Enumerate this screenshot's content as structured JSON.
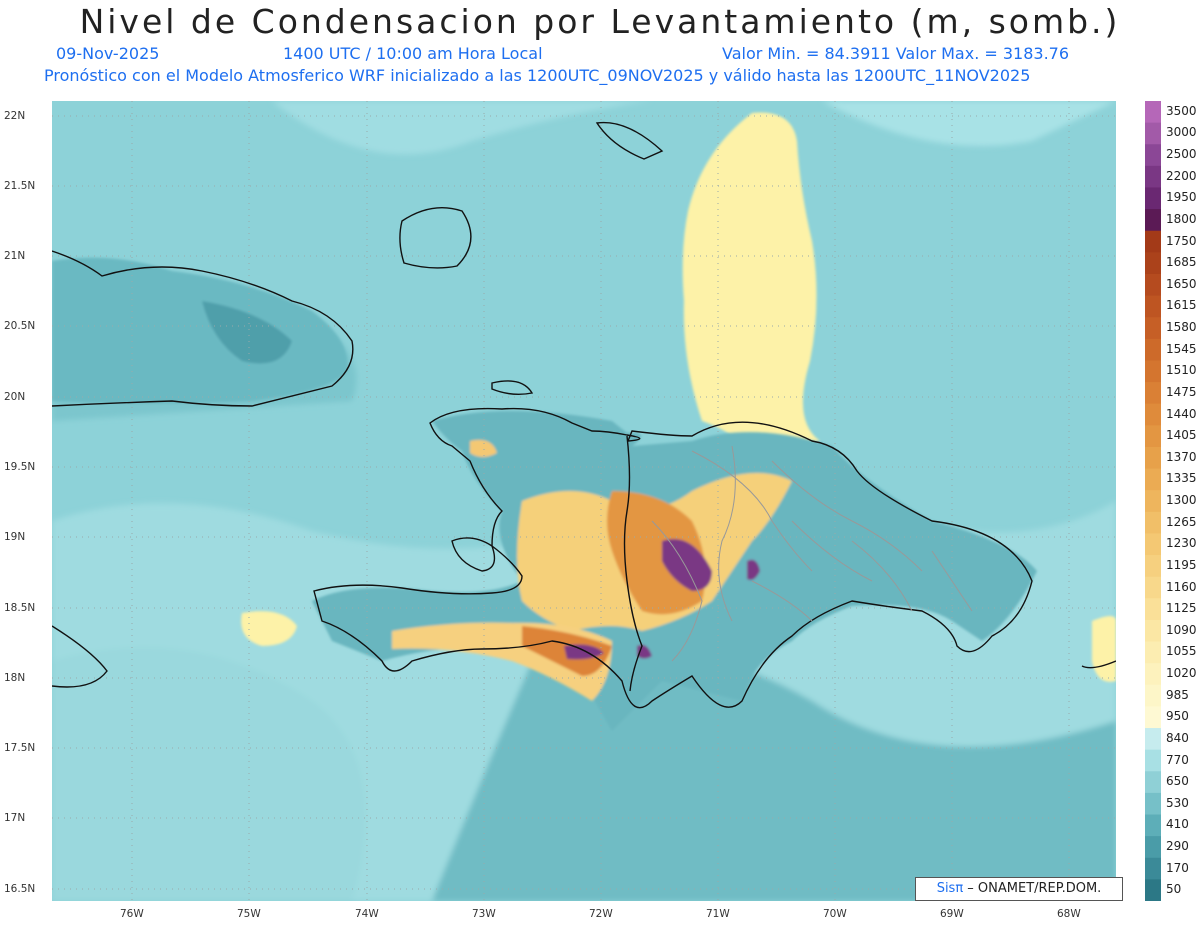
{
  "header": {
    "title": "Nivel de Condensacion por Levantamiento (m, somb.)",
    "date": "09-Nov-2025",
    "time": "1400 UTC / 10:00 am Hora Local",
    "minmax": "Valor Min. = 84.3911  Valor Max. = 3183.76",
    "forecast": "Pronóstico con el Modelo Atmosferico WRF inicializado a las 1200UTC_09NOV2025 y válido hasta las  1200UTC_11NOV2025"
  },
  "axes": {
    "y_labels": [
      "22N",
      "21.5N",
      "21N",
      "20.5N",
      "20N",
      "19.5N",
      "19N",
      "18.5N",
      "18N",
      "17.5N",
      "17N",
      "16.5N"
    ],
    "x_labels": [
      "76W",
      "75W",
      "74W",
      "73W",
      "72W",
      "71W",
      "70W",
      "69W",
      "68W"
    ]
  },
  "colorbar": {
    "labels": [
      "3500",
      "3000",
      "2500",
      "2200",
      "1950",
      "1800",
      "1750",
      "1685",
      "1650",
      "1615",
      "1580",
      "1545",
      "1510",
      "1475",
      "1440",
      "1405",
      "1370",
      "1335",
      "1300",
      "1265",
      "1230",
      "1195",
      "1160",
      "1125",
      "1090",
      "1055",
      "1020",
      "985",
      "950",
      "840",
      "770",
      "650",
      "530",
      "410",
      "290",
      "170",
      "50"
    ],
    "colors": [
      "#b567b8",
      "#a25aa8",
      "#8b4796",
      "#7a3784",
      "#6a2872",
      "#5b1a55",
      "#a33a18",
      "#ab421b",
      "#b54b1f",
      "#be5522",
      "#c65f26",
      "#cd6a2a",
      "#d4752f",
      "#da8035",
      "#df8b3b",
      "#e39642",
      "#e7a14a",
      "#ebab53",
      "#eeb55d",
      "#f1bf68",
      "#f4c873",
      "#f6d07f",
      "#f8d88b",
      "#fae098",
      "#fbe7a4",
      "#fcedb1",
      "#fdf2bd",
      "#fdf6c8",
      "#fef9d3",
      "#c6ecee",
      "#a8e0e4",
      "#8fd0d6",
      "#76c0c8",
      "#5daeb8",
      "#4a9ca8",
      "#3b8a98",
      "#2c7886"
    ],
    "accent_land": "#7ec8cc",
    "sea_color": "#8ad3d8"
  },
  "credit": {
    "brand": "Sisπ",
    "text": " – ONAMET/REP.DOM."
  }
}
